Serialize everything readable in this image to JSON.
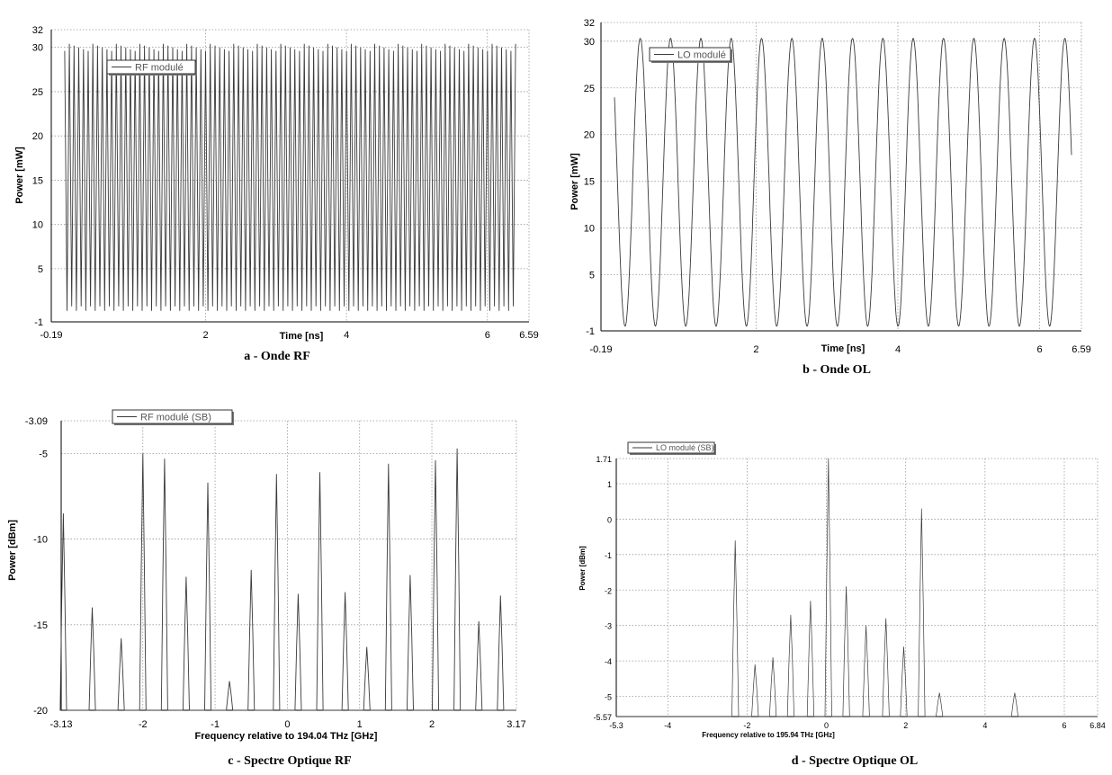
{
  "colors": {
    "trace": "#3a3a3a",
    "grid": "#9a9a9a",
    "axis": "#000000"
  },
  "chart_data": [
    {
      "type": "line",
      "caption": "a - Onde RF",
      "legend": "RF modulé",
      "xlabel": "Time [ns]",
      "ylabel": "Power [mW]",
      "xlim": [
        -0.19,
        6.59
      ],
      "ylim": [
        -1,
        32
      ],
      "xticks": [
        "-0.19",
        "2",
        "4",
        "6",
        "6.59"
      ],
      "xtick_values": [
        -0.19,
        2,
        4,
        6,
        6.59
      ],
      "yticks": [
        "32",
        "30",
        "25",
        "20",
        "15",
        "10",
        "5",
        "-1"
      ],
      "ytick_values": [
        32,
        30,
        25,
        20,
        15,
        10,
        5,
        -1
      ],
      "signal": {
        "kind": "fast-oscillation",
        "x_start": 0,
        "x_end": 6.4,
        "cycles": 96,
        "min": 0,
        "max": 30
      }
    },
    {
      "type": "line",
      "caption": "b - Onde OL",
      "legend": "LO modulé",
      "xlabel": "Time [ns]",
      "ylabel": "Power [mW]",
      "xlim": [
        -0.19,
        6.59
      ],
      "ylim": [
        -1,
        32
      ],
      "xticks": [
        "-0.19",
        "2",
        "4",
        "6",
        "6.59"
      ],
      "xtick_values": [
        -0.19,
        2,
        4,
        6,
        6.59
      ],
      "yticks": [
        "32",
        "30",
        "25",
        "20",
        "15",
        "10",
        "5",
        "-1"
      ],
      "ytick_values": [
        32,
        30,
        25,
        20,
        15,
        10,
        5,
        -1
      ],
      "signal": {
        "kind": "sine",
        "x_start": 0,
        "x_end": 6.45,
        "period": 0.428,
        "min": -0.5,
        "max": 30.3
      }
    },
    {
      "type": "line",
      "caption": "c - Spectre Optique RF",
      "legend": "RF modulé  (SB)",
      "xlabel": "Frequency relative to 194.04 THz [GHz]",
      "ylabel": "Power [dBm]",
      "xlim": [
        -3.13,
        3.17
      ],
      "ylim": [
        -20,
        -3.09
      ],
      "xticks": [
        "-3.13",
        "-2",
        "-1",
        "0",
        "1",
        "2",
        "3.17"
      ],
      "xtick_values": [
        -3.13,
        -2,
        -1,
        0,
        1,
        2,
        3.17
      ],
      "yticks": [
        "-3.09",
        "-5",
        "-10",
        "-15",
        "-20"
      ],
      "ytick_values": [
        -3.09,
        -5,
        -10,
        -15,
        -20
      ],
      "peaks": [
        {
          "x": -3.1,
          "y": -8.5
        },
        {
          "x": -2.7,
          "y": -14
        },
        {
          "x": -2.3,
          "y": -15.8
        },
        {
          "x": -2.0,
          "y": -5.0
        },
        {
          "x": -1.7,
          "y": -5.3
        },
        {
          "x": -1.4,
          "y": -12.2
        },
        {
          "x": -1.1,
          "y": -6.7
        },
        {
          "x": -0.8,
          "y": -18.3
        },
        {
          "x": -0.5,
          "y": -11.8
        },
        {
          "x": -0.15,
          "y": -6.2
        },
        {
          "x": 0.15,
          "y": -13.2
        },
        {
          "x": 0.45,
          "y": -6.1
        },
        {
          "x": 0.8,
          "y": -13.1
        },
        {
          "x": 1.1,
          "y": -16.3
        },
        {
          "x": 1.4,
          "y": -5.6
        },
        {
          "x": 1.7,
          "y": -12.1
        },
        {
          "x": 2.05,
          "y": -5.4
        },
        {
          "x": 2.35,
          "y": -4.7
        },
        {
          "x": 2.65,
          "y": -14.8
        },
        {
          "x": 2.95,
          "y": -13.3
        }
      ]
    },
    {
      "type": "line",
      "caption": "d - Spectre Optique OL",
      "legend": "LO modulé (SB)",
      "xlabel": "Frequency relative to 195.94 THz [GHz]",
      "ylabel": "Power [dBm]",
      "xlim": [
        -5.3,
        6.84
      ],
      "ylim": [
        -5.57,
        1.71
      ],
      "xticks": [
        "-5.3",
        "-4",
        "-2",
        "0",
        "2",
        "4",
        "6",
        "6.84"
      ],
      "xtick_values": [
        -5.3,
        -4,
        -2,
        0,
        2,
        4,
        6,
        6.84
      ],
      "yticks": [
        "1.71",
        "1",
        "0",
        "-1",
        "-2",
        "-3",
        "-4",
        "-5",
        "-5.57"
      ],
      "ytick_values": [
        1.71,
        1,
        0,
        -1,
        -2,
        -3,
        -4,
        -5,
        -5.57
      ],
      "peaks": [
        {
          "x": -2.3,
          "y": -0.6
        },
        {
          "x": -1.8,
          "y": -4.1
        },
        {
          "x": -1.35,
          "y": -3.9
        },
        {
          "x": -0.9,
          "y": -2.7
        },
        {
          "x": -0.4,
          "y": -2.3
        },
        {
          "x": 0.05,
          "y": 1.71
        },
        {
          "x": 0.5,
          "y": -1.9
        },
        {
          "x": 1.0,
          "y": -3.0
        },
        {
          "x": 1.5,
          "y": -2.8
        },
        {
          "x": 1.95,
          "y": -3.6
        },
        {
          "x": 2.4,
          "y": 0.3
        },
        {
          "x": 2.85,
          "y": -4.9
        },
        {
          "x": 4.75,
          "y": -4.9
        }
      ]
    }
  ]
}
